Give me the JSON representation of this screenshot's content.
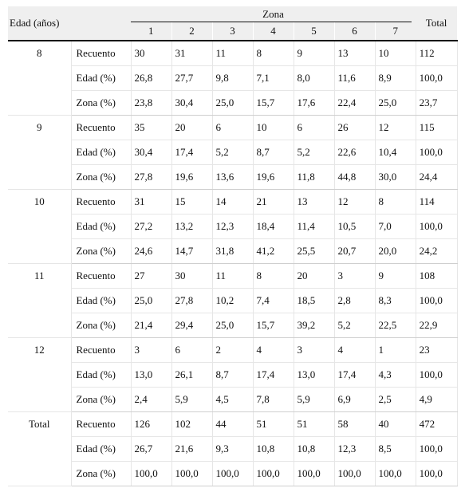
{
  "table": {
    "header": {
      "age_label": "Edad (años)",
      "zone_label": "Zona",
      "total_label": "Total",
      "zones": [
        "1",
        "2",
        "3",
        "4",
        "5",
        "6",
        "7"
      ]
    },
    "groups": [
      {
        "age": "8",
        "rows": [
          {
            "label": "Recuento",
            "cells": [
              "30",
              "31",
              "11",
              "8",
              "9",
              "13",
              "10",
              "112"
            ]
          },
          {
            "label": "Edad (%)",
            "cells": [
              "26,8",
              "27,7",
              "9,8",
              "7,1",
              "8,0",
              "11,6",
              "8,9",
              "100,0"
            ]
          },
          {
            "label": "Zona (%)",
            "cells": [
              "23,8",
              "30,4",
              "25,0",
              "15,7",
              "17,6",
              "22,4",
              "25,0",
              "23,7"
            ]
          }
        ]
      },
      {
        "age": "9",
        "rows": [
          {
            "label": "Recuento",
            "cells": [
              "35",
              "20",
              "6",
              "10",
              "6",
              "26",
              "12",
              "115"
            ]
          },
          {
            "label": "Edad (%)",
            "cells": [
              "30,4",
              "17,4",
              "5,2",
              "8,7",
              "5,2",
              "22,6",
              "10,4",
              "100,0"
            ]
          },
          {
            "label": "Zona (%)",
            "cells": [
              "27,8",
              "19,6",
              "13,6",
              "19,6",
              "11,8",
              "44,8",
              "30,0",
              "24,4"
            ]
          }
        ]
      },
      {
        "age": "10",
        "rows": [
          {
            "label": "Recuento",
            "cells": [
              "31",
              "15",
              "14",
              "21",
              "13",
              "12",
              "8",
              "114"
            ]
          },
          {
            "label": "Edad (%)",
            "cells": [
              "27,2",
              "13,2",
              "12,3",
              "18,4",
              "11,4",
              "10,5",
              "7,0",
              "100,0"
            ]
          },
          {
            "label": "Zona (%)",
            "cells": [
              "24,6",
              "14,7",
              "31,8",
              "41,2",
              "25,5",
              "20,7",
              "20,0",
              "24,2"
            ]
          }
        ]
      },
      {
        "age": "11",
        "rows": [
          {
            "label": "Recuento",
            "cells": [
              "27",
              "30",
              "11",
              "8",
              "20",
              "3",
              "9",
              "108"
            ]
          },
          {
            "label": "Edad (%)",
            "cells": [
              "25,0",
              "27,8",
              "10,2",
              "7,4",
              "18,5",
              "2,8",
              "8,3",
              "100,0"
            ]
          },
          {
            "label": "Zona (%)",
            "cells": [
              "21,4",
              "29,4",
              "25,0",
              "15,7",
              "39,2",
              "5,2",
              "22,5",
              "22,9"
            ]
          }
        ]
      },
      {
        "age": "12",
        "rows": [
          {
            "label": "Recuento",
            "cells": [
              "3",
              "6",
              "2",
              "4",
              "3",
              "4",
              "1",
              "23"
            ]
          },
          {
            "label": "Edad (%)",
            "cells": [
              "13,0",
              "26,1",
              "8,7",
              "17,4",
              "13,0",
              "17,4",
              "4,3",
              "100,0"
            ]
          },
          {
            "label": "Zona (%)",
            "cells": [
              "2,4",
              "5,9",
              "4,5",
              "7,8",
              "5,9",
              "6,9",
              "2,5",
              "4,9"
            ]
          }
        ]
      },
      {
        "age": "Total",
        "rows": [
          {
            "label": "Recuento",
            "cells": [
              "126",
              "102",
              "44",
              "51",
              "51",
              "58",
              "40",
              "472"
            ]
          },
          {
            "label": "Edad (%)",
            "cells": [
              "26,7",
              "21,6",
              "9,3",
              "10,8",
              "10,8",
              "12,3",
              "8,5",
              "100,0"
            ]
          },
          {
            "label": "Zona (%)",
            "cells": [
              "100,0",
              "100,0",
              "100,0",
              "100,0",
              "100,0",
              "100,0",
              "100,0",
              "100,0"
            ]
          }
        ]
      }
    ]
  }
}
